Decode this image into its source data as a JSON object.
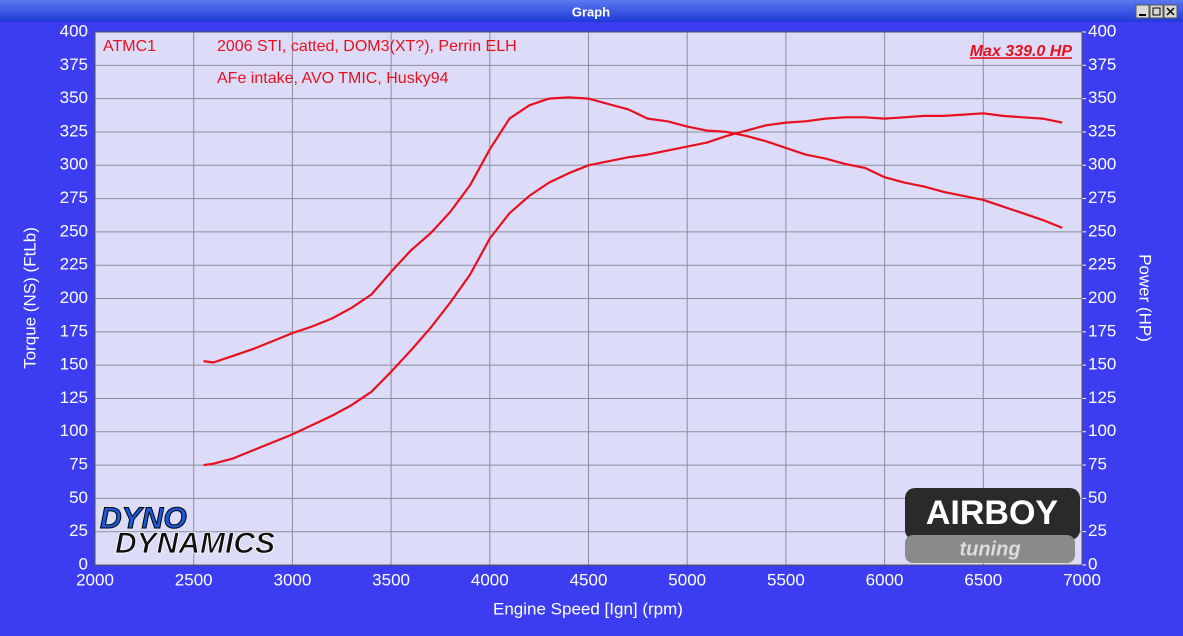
{
  "window": {
    "title": "Graph"
  },
  "chart_data": {
    "type": "line",
    "x_label": "Engine Speed [Ign] (rpm)",
    "y_label": "Torque (NS) (FtLb)",
    "y2_label": "Power (HP)",
    "annotations": [
      "ATMC1",
      "2006 STI, catted, DOM3(XT?), Perrin ELH",
      "AFe intake, AVO TMIC, Husky94",
      "Max 339.0 HP"
    ],
    "logos": [
      "DYNO",
      "DYNAMICS",
      "AIRBOY",
      "tuning"
    ],
    "x": [
      2550,
      2600,
      2700,
      2800,
      2900,
      3000,
      3100,
      3200,
      3300,
      3400,
      3500,
      3600,
      3700,
      3800,
      3900,
      4000,
      4100,
      4200,
      4300,
      4400,
      4500,
      4600,
      4700,
      4800,
      4900,
      5000,
      5100,
      5200,
      5300,
      5400,
      5500,
      5600,
      5700,
      5800,
      5900,
      6000,
      6100,
      6200,
      6300,
      6400,
      6500,
      6600,
      6700,
      6800,
      6900
    ],
    "series": [
      {
        "color": "#e8101e",
        "axis": "y",
        "values": [
          153,
          152,
          157,
          162,
          168,
          174,
          179,
          185,
          193,
          203,
          220,
          236,
          249,
          265,
          285,
          312,
          335,
          345,
          350,
          351,
          350,
          346,
          342,
          335,
          333,
          329,
          326,
          325,
          322,
          318,
          313,
          308,
          305,
          301,
          298,
          291,
          287,
          284,
          280,
          277,
          274,
          269,
          264,
          259,
          253
        ]
      },
      {
        "color": "#e8101e",
        "axis": "y2",
        "values": [
          75,
          76,
          80,
          86,
          92,
          98,
          105,
          112,
          120,
          130,
          145,
          161,
          178,
          197,
          218,
          245,
          264,
          277,
          287,
          294,
          300,
          303,
          306,
          308,
          311,
          314,
          317,
          322,
          326,
          330,
          332,
          333,
          335,
          336,
          336,
          335,
          336,
          337,
          337,
          338,
          339,
          337,
          336,
          335,
          332
        ]
      }
    ],
    "xlim": [
      2000,
      7000
    ],
    "xticks": [
      2000,
      2500,
      3000,
      3500,
      4000,
      4500,
      5000,
      5500,
      6000,
      6500,
      7000
    ],
    "ylim": [
      0,
      400
    ],
    "yticks": [
      0,
      25,
      50,
      75,
      100,
      125,
      150,
      175,
      200,
      225,
      250,
      275,
      300,
      325,
      350,
      375,
      400
    ],
    "y2lim": [
      0,
      400
    ],
    "y2ticks": [
      0,
      25,
      50,
      75,
      100,
      125,
      150,
      175,
      200,
      225,
      250,
      275,
      300,
      325,
      350,
      375,
      400
    ],
    "grid": true
  }
}
